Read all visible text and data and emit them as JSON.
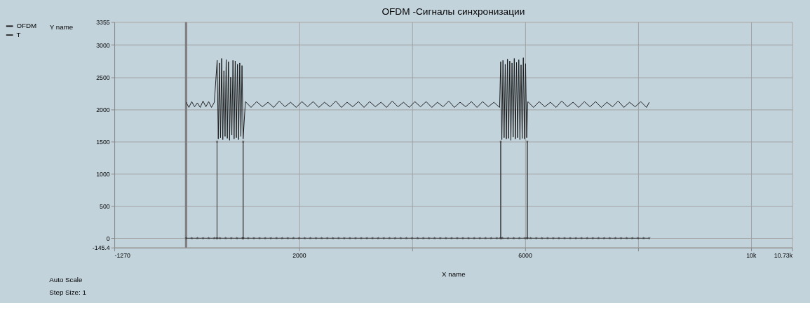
{
  "chart_data": {
    "type": "line",
    "title": "OFDM -Сигналы синхронизации",
    "xlabel": "X name",
    "ylabel": "Y name",
    "xlim": [
      -1270,
      10730
    ],
    "xticks": [
      -1270,
      2000,
      {
        "value": 4000,
        "label": null
      },
      6000,
      {
        "value": 8000,
        "label": null
      },
      {
        "value": 10000,
        "label": "10k"
      },
      {
        "value": 10730,
        "label": "10.73k"
      }
    ],
    "ylim": [
      -145.4,
      3355
    ],
    "yticks": [
      -145.4,
      0,
      500,
      1000,
      1500,
      2000,
      2500,
      3000,
      3355
    ],
    "grid": true,
    "legend": "left",
    "series": [
      {
        "name": "OFDM",
        "color": "#1a1a1a",
        "marker": "none",
        "line_style": "solid",
        "x": [
          0,
          50,
          100,
          150,
          200,
          250,
          300,
          350,
          400,
          450,
          500,
          550,
          570,
          590,
          610,
          630,
          650,
          670,
          690,
          710,
          730,
          750,
          770,
          790,
          810,
          830,
          850,
          870,
          890,
          910,
          930,
          950,
          970,
          990,
          1010,
          1050,
          1150,
          1250,
          1350,
          1450,
          1550,
          1650,
          1750,
          1850,
          1950,
          2050,
          2150,
          2250,
          2350,
          2450,
          2550,
          2650,
          2750,
          2850,
          2950,
          3050,
          3150,
          3250,
          3350,
          3450,
          3550,
          3650,
          3750,
          3850,
          3950,
          4050,
          4150,
          4250,
          4350,
          4450,
          4550,
          4650,
          4750,
          4850,
          4950,
          5050,
          5150,
          5250,
          5350,
          5450,
          5550,
          5570,
          5590,
          5610,
          5630,
          5650,
          5670,
          5690,
          5710,
          5730,
          5750,
          5770,
          5790,
          5810,
          5830,
          5850,
          5870,
          5890,
          5910,
          5930,
          5950,
          5970,
          5990,
          6010,
          6030,
          6050,
          6150,
          6250,
          6350,
          6450,
          6550,
          6650,
          6750,
          6850,
          6950,
          7050,
          7150,
          7250,
          7350,
          7450,
          7550,
          7650,
          7750,
          7850,
          7950,
          8050,
          8150,
          8200
        ],
        "values": [
          2110,
          2030,
          2120,
          2040,
          2100,
          2030,
          2130,
          2040,
          2120,
          2030,
          2110,
          2760,
          1540,
          2720,
          1560,
          2790,
          1530,
          2600,
          1580,
          2770,
          1550,
          2740,
          1520,
          2500,
          1600,
          2760,
          1540,
          2750,
          1560,
          2700,
          1530,
          2720,
          1580,
          2680,
          1540,
          2120,
          2030,
          2120,
          2040,
          2110,
          2030,
          2130,
          2040,
          2110,
          2030,
          2120,
          2040,
          2120,
          2030,
          2110,
          2040,
          2130,
          2030,
          2110,
          2040,
          2120,
          2030,
          2120,
          2040,
          2110,
          2030,
          2130,
          2040,
          2110,
          2030,
          2120,
          2040,
          2120,
          2030,
          2110,
          2040,
          2130,
          2030,
          2110,
          2040,
          2120,
          2030,
          2120,
          2040,
          2110,
          2030,
          2740,
          1530,
          2760,
          1560,
          2700,
          1540,
          2780,
          1550,
          2750,
          1520,
          2720,
          1570,
          2790,
          1540,
          2730,
          1560,
          2770,
          1530,
          2690,
          1550,
          2800,
          1540,
          2710,
          1560,
          2120,
          2030,
          2120,
          2040,
          2110,
          2030,
          2130,
          2040,
          2110,
          2030,
          2120,
          2040,
          2120,
          2030,
          2110,
          2040,
          2130,
          2030,
          2110,
          2040,
          2120,
          2030,
          2110
        ]
      },
      {
        "name": "T",
        "color": "#333333",
        "marker": "star",
        "line_style": "solid",
        "x": [
          0,
          100,
          200,
          300,
          400,
          500,
          548,
          548,
          548,
          600,
          700,
          800,
          900,
          1000,
          1010,
          1010,
          1010,
          1100,
          1200,
          1300,
          1400,
          1500,
          1600,
          1700,
          1800,
          1900,
          2000,
          2100,
          2200,
          2300,
          2400,
          2500,
          2600,
          2700,
          2800,
          2900,
          3000,
          3100,
          3200,
          3300,
          3400,
          3500,
          3600,
          3700,
          3800,
          3900,
          4000,
          4100,
          4200,
          4300,
          4400,
          4500,
          4600,
          4700,
          4800,
          4900,
          5000,
          5100,
          5200,
          5300,
          5400,
          5500,
          5570,
          5570,
          5570,
          5600,
          5700,
          5800,
          5900,
          6000,
          6040,
          6040,
          6040,
          6100,
          6200,
          6300,
          6400,
          6500,
          6600,
          6700,
          6800,
          6900,
          7000,
          7100,
          7200,
          7300,
          7400,
          7500,
          7600,
          7700,
          7800,
          7900,
          8000,
          8100,
          8200
        ],
        "values": [
          0,
          0,
          0,
          0,
          0,
          0,
          0,
          1500,
          0,
          0,
          0,
          0,
          0,
          0,
          0,
          1500,
          0,
          0,
          0,
          0,
          0,
          0,
          0,
          0,
          0,
          0,
          0,
          0,
          0,
          0,
          0,
          0,
          0,
          0,
          0,
          0,
          0,
          0,
          0,
          0,
          0,
          0,
          0,
          0,
          0,
          0,
          0,
          0,
          0,
          0,
          0,
          0,
          0,
          0,
          0,
          0,
          0,
          0,
          0,
          0,
          0,
          0,
          0,
          1500,
          0,
          0,
          0,
          0,
          0,
          0,
          0,
          1500,
          0,
          0,
          0,
          0,
          0,
          0,
          0,
          0,
          0,
          0,
          0,
          0,
          0,
          0,
          0,
          0,
          0,
          0,
          0,
          0,
          0,
          0,
          0
        ]
      }
    ],
    "ref_lines": [
      {
        "axis": "x",
        "value": 0,
        "color": "#808080"
      }
    ],
    "annotations": [
      "Auto Scale",
      "Step Size:   1"
    ]
  }
}
